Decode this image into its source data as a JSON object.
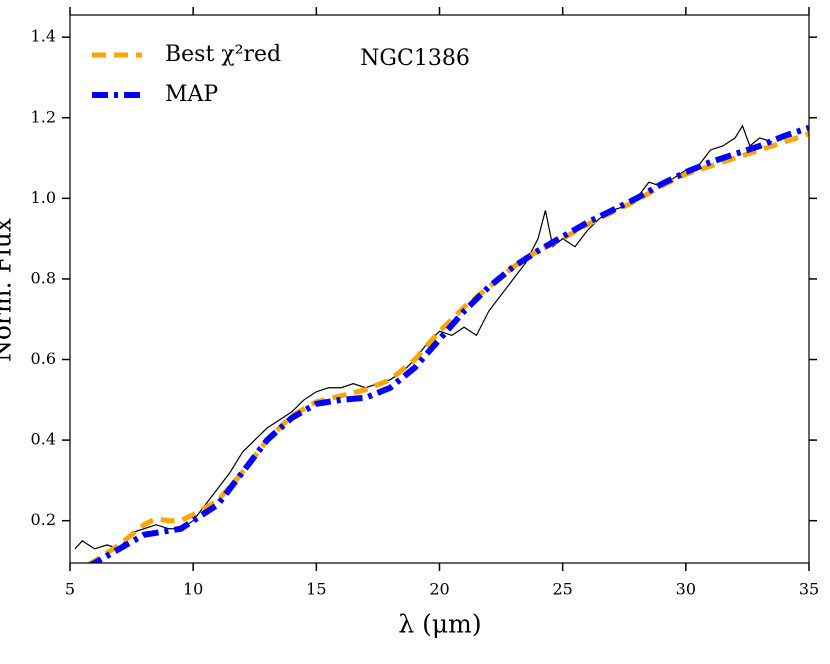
{
  "chart_data": {
    "type": "line",
    "annotation": "NGC1386",
    "xlabel": "λ (μm)",
    "ylabel": "Norm. Flux",
    "xlim": [
      5,
      35
    ],
    "ylim": [
      0.095,
      1.455
    ],
    "xticks": [
      5,
      10,
      15,
      20,
      25,
      30,
      35
    ],
    "yticks": [
      0.2,
      0.4,
      0.6,
      0.8,
      {
        "value": 1,
        "label": "1.0"
      },
      1.2,
      1.4
    ],
    "legend": "upper left",
    "series": [
      {
        "color": "#000000",
        "style": "solid",
        "x": [
          5.2,
          5.5,
          6,
          6.5,
          7,
          7.5,
          8,
          8.5,
          9,
          9.5,
          10,
          10.5,
          11,
          11.5,
          12,
          12.5,
          13,
          13.5,
          14,
          14.5,
          15,
          15.5,
          16,
          16.5,
          17,
          17.5,
          18,
          18.5,
          19,
          19.5,
          20,
          20.5,
          21,
          21.5,
          22,
          22.5,
          23,
          23.5,
          24,
          24.3,
          24.6,
          25,
          25.5,
          26,
          26.5,
          27,
          27.5,
          28,
          28.5,
          29,
          29.5,
          30,
          30.5,
          31,
          31.5,
          32,
          32.3,
          32.6,
          33,
          33.5
        ],
        "values": [
          0.13,
          0.15,
          0.13,
          0.14,
          0.13,
          0.17,
          0.18,
          0.19,
          0.18,
          0.18,
          0.2,
          0.24,
          0.28,
          0.32,
          0.37,
          0.4,
          0.43,
          0.45,
          0.47,
          0.5,
          0.52,
          0.53,
          0.53,
          0.54,
          0.53,
          0.54,
          0.55,
          0.57,
          0.6,
          0.64,
          0.67,
          0.66,
          0.68,
          0.66,
          0.72,
          0.76,
          0.8,
          0.84,
          0.9,
          0.97,
          0.88,
          0.9,
          0.88,
          0.92,
          0.95,
          0.97,
          0.98,
          1.0,
          1.04,
          1.03,
          1.05,
          1.07,
          1.08,
          1.12,
          1.13,
          1.15,
          1.18,
          1.13,
          1.15,
          1.14
        ]
      },
      {
        "name": "Best χ²red",
        "color": "#ffa500",
        "style": "dashed",
        "x": [
          5.7,
          6,
          7,
          8,
          8.5,
          9,
          9.5,
          10,
          11,
          12,
          13,
          14,
          15,
          16,
          17,
          18,
          19,
          20,
          21,
          22,
          23,
          24,
          25,
          26,
          27,
          28,
          29,
          30,
          31,
          32,
          33,
          34,
          35
        ],
        "values": [
          0.09,
          0.1,
          0.14,
          0.19,
          0.205,
          0.2,
          0.2,
          0.215,
          0.25,
          0.32,
          0.4,
          0.46,
          0.495,
          0.51,
          0.525,
          0.55,
          0.6,
          0.67,
          0.73,
          0.78,
          0.83,
          0.87,
          0.9,
          0.935,
          0.965,
          0.995,
          1.03,
          1.06,
          1.08,
          1.1,
          1.12,
          1.14,
          1.16
        ]
      },
      {
        "name": "MAP",
        "color": "#0000ff",
        "style": "dashdot",
        "x": [
          5.7,
          6,
          7,
          8,
          9,
          9.5,
          10,
          11,
          12,
          13,
          14,
          15,
          16,
          17,
          18,
          19,
          20,
          21,
          22,
          23,
          24,
          25,
          26,
          27,
          28,
          29,
          30,
          31,
          32,
          33,
          34,
          35
        ],
        "values": [
          0.085,
          0.095,
          0.13,
          0.165,
          0.175,
          0.18,
          0.2,
          0.24,
          0.32,
          0.4,
          0.455,
          0.49,
          0.5,
          0.505,
          0.53,
          0.58,
          0.65,
          0.72,
          0.78,
          0.83,
          0.87,
          0.905,
          0.94,
          0.97,
          1.0,
          1.035,
          1.065,
          1.09,
          1.11,
          1.13,
          1.155,
          1.175
        ]
      }
    ]
  }
}
